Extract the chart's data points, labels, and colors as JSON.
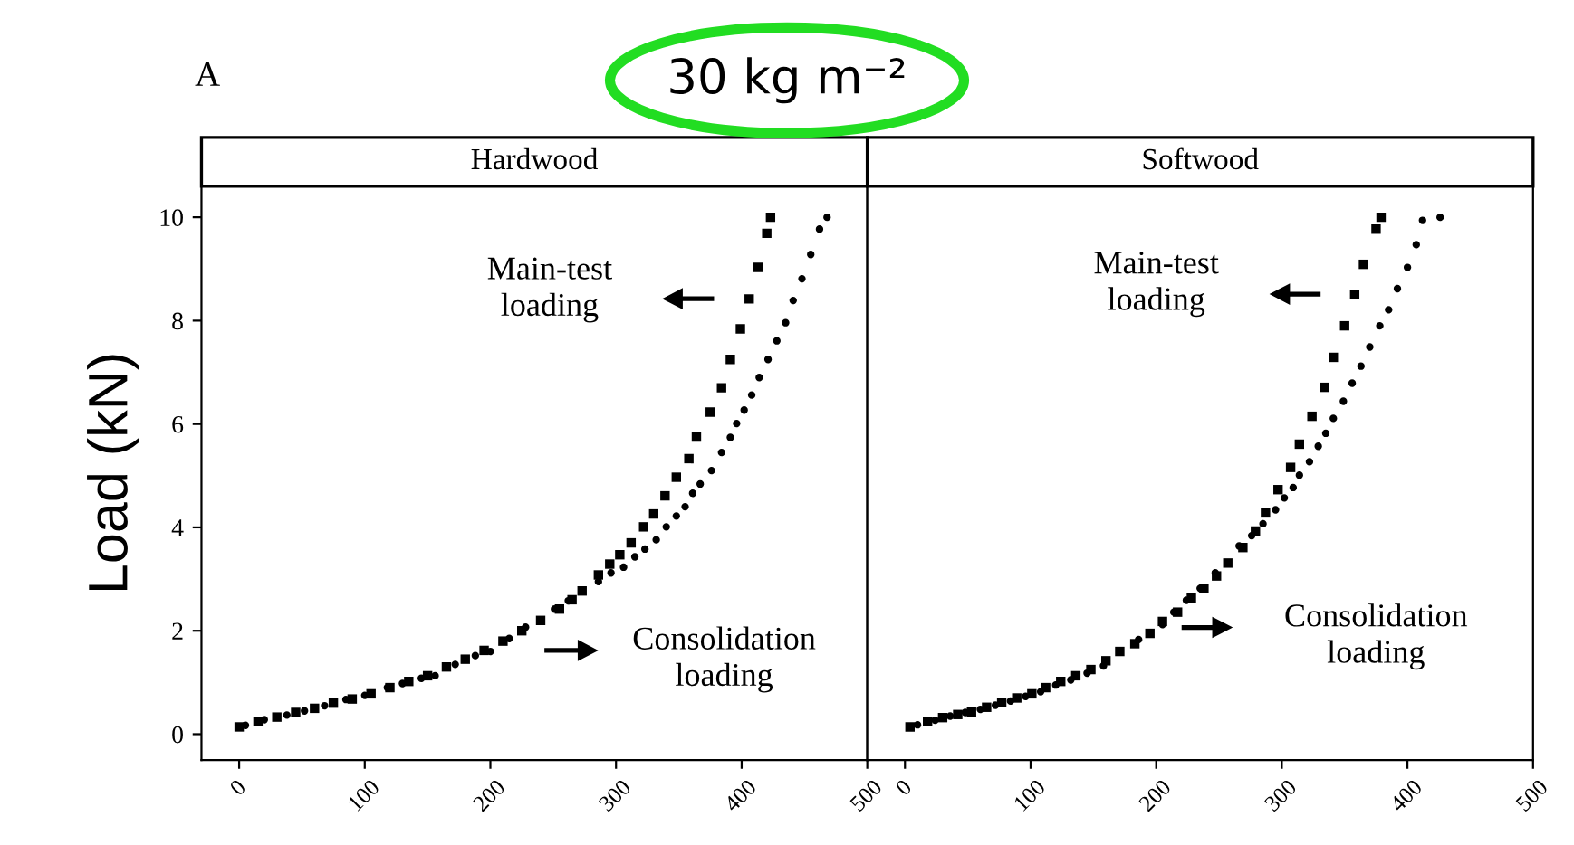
{
  "chart_data": [
    {
      "type": "scatter",
      "title": "30 kg m⁻²",
      "subtitle": "Hardwood",
      "ylabel": "Load (kN)",
      "xlim": [
        -30,
        500
      ],
      "xticks": [
        0,
        100,
        200,
        300,
        400,
        500
      ],
      "ylim": [
        -0.5,
        10.6
      ],
      "yticks": [
        0,
        2,
        4,
        6,
        8,
        10
      ],
      "grid": false,
      "annotations": [
        "A",
        "Main-test\nloading",
        "Consolidation\nloading"
      ],
      "series": [
        {
          "color": "#000000",
          "marker": "square",
          "x": [
            0,
            15,
            30,
            45,
            60,
            75,
            90,
            105,
            120,
            135,
            150,
            165,
            180,
            195,
            210,
            225,
            240,
            255,
            265,
            273,
            286,
            295,
            303,
            312,
            322,
            330,
            339,
            348,
            358,
            364,
            375,
            384,
            391,
            399,
            406,
            413,
            420,
            423
          ],
          "values": [
            0.14,
            0.25,
            0.33,
            0.42,
            0.5,
            0.6,
            0.68,
            0.78,
            0.9,
            1.02,
            1.13,
            1.3,
            1.45,
            1.62,
            1.8,
            2.0,
            2.2,
            2.42,
            2.6,
            2.77,
            3.08,
            3.29,
            3.47,
            3.7,
            4.01,
            4.26,
            4.61,
            4.97,
            5.33,
            5.75,
            6.23,
            6.7,
            7.25,
            7.84,
            8.42,
            9.03,
            9.69,
            10.0
          ]
        },
        {
          "color": "#000000",
          "marker": "circle",
          "x": [
            5,
            20,
            38,
            52,
            68,
            85,
            100,
            118,
            130,
            145,
            156,
            172,
            188,
            200,
            215,
            228,
            251,
            262,
            275,
            286,
            296,
            306,
            315,
            323,
            332,
            340,
            348,
            355,
            361,
            367,
            376,
            384,
            391,
            396,
            402,
            408,
            414,
            421,
            428,
            435,
            441,
            448,
            455,
            462,
            468
          ],
          "values": [
            0.17,
            0.28,
            0.37,
            0.45,
            0.55,
            0.67,
            0.75,
            0.9,
            0.98,
            1.08,
            1.13,
            1.35,
            1.52,
            1.6,
            1.85,
            2.07,
            2.42,
            2.58,
            null,
            2.95,
            3.12,
            3.23,
            3.43,
            3.58,
            3.76,
            4.01,
            4.22,
            4.4,
            4.66,
            4.84,
            5.1,
            5.45,
            5.74,
            6.01,
            6.27,
            6.56,
            6.9,
            7.25,
            7.61,
            7.96,
            8.39,
            8.81,
            9.28,
            9.77,
            10.0
          ]
        }
      ]
    },
    {
      "type": "scatter",
      "subtitle": "Softwood",
      "xlim": [
        -30,
        500
      ],
      "xticks": [
        0,
        100,
        200,
        300,
        400,
        500
      ],
      "ylim": [
        -0.5,
        10.6
      ],
      "yticks": [
        0,
        2,
        4,
        6,
        8,
        10
      ],
      "tick_labels": "x",
      "grid": false,
      "annotations": [
        "Main-test\nloading",
        "Consolidation\nloading"
      ],
      "series": [
        {
          "color": "#000000",
          "marker": "square",
          "x": [
            4,
            18,
            30,
            42,
            53,
            65,
            77,
            89,
            101,
            112,
            124,
            136,
            148,
            160,
            171,
            183,
            195,
            205,
            217,
            228,
            238,
            248,
            257,
            269,
            279,
            287,
            297,
            307,
            314,
            324,
            334,
            341,
            350,
            358,
            365,
            375,
            379
          ],
          "values": [
            0.14,
            0.24,
            0.32,
            0.38,
            0.43,
            0.52,
            0.61,
            0.7,
            0.78,
            0.9,
            1.02,
            1.13,
            1.25,
            1.42,
            1.6,
            1.75,
            1.95,
            2.18,
            2.36,
            2.63,
            2.82,
            3.06,
            3.31,
            3.61,
            3.93,
            4.28,
            4.73,
            5.16,
            5.61,
            6.15,
            6.71,
            7.29,
            7.9,
            8.51,
            9.09,
            9.77,
            10.0
          ]
        },
        {
          "color": "#000000",
          "marker": "circle",
          "x": [
            10,
            24,
            36,
            48,
            60,
            72,
            84,
            96,
            108,
            120,
            132,
            145,
            158,
            186,
            205,
            214,
            224,
            235,
            247,
            257,
            266,
            276,
            285,
            295,
            302,
            309,
            314,
            322,
            329,
            335,
            341,
            349,
            356,
            363,
            370,
            378,
            385,
            392,
            400,
            407,
            412,
            426
          ],
          "values": [
            0.18,
            0.27,
            0.35,
            0.42,
            0.48,
            0.56,
            0.64,
            0.73,
            0.82,
            0.95,
            1.05,
            1.18,
            1.32,
            1.83,
            2.12,
            2.36,
            2.59,
            2.82,
            3.12,
            null,
            3.64,
            3.84,
            4.07,
            4.34,
            4.57,
            4.77,
            5.01,
            5.27,
            5.57,
            5.82,
            6.11,
            6.44,
            6.79,
            7.12,
            7.49,
            7.9,
            8.21,
            8.62,
            9.03,
            9.47,
            9.94,
            10.0
          ]
        }
      ]
    }
  ]
}
